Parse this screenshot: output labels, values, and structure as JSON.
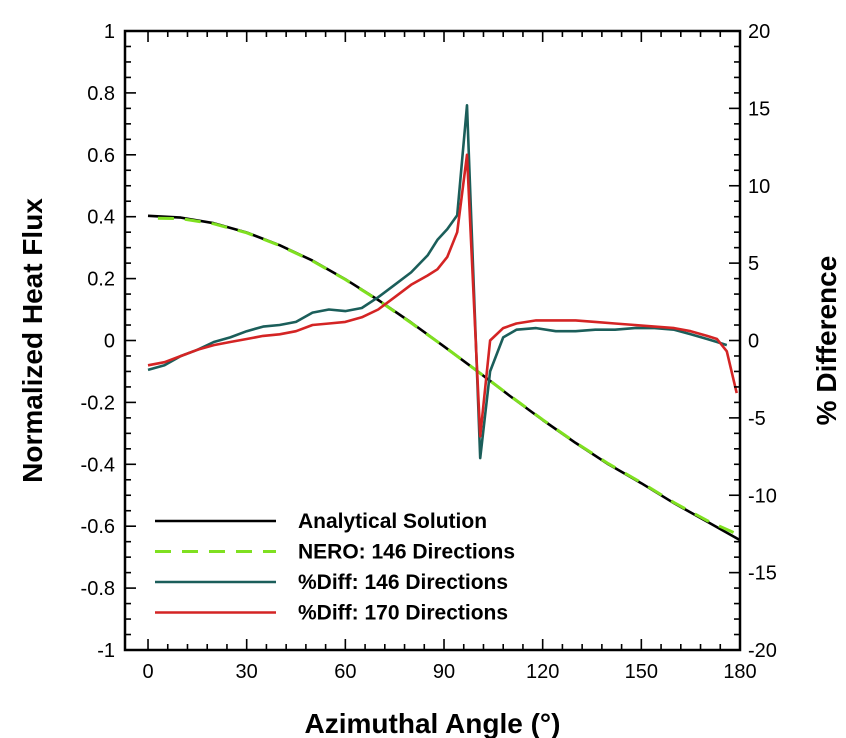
{
  "chart_data": {
    "type": "line",
    "xlabel": "Azimuthal Angle (°)",
    "ylabel": "Normalized Heat Flux",
    "y2label": "% Difference",
    "xlim": [
      -7,
      180
    ],
    "ylim": [
      -1,
      1
    ],
    "y2lim": [
      -20,
      20
    ],
    "x_ticks": [
      0,
      30,
      60,
      90,
      120,
      150,
      180
    ],
    "y_ticks": [
      -1,
      -0.8,
      -0.6,
      -0.4,
      -0.2,
      0,
      0.2,
      0.4,
      0.6,
      0.8,
      1
    ],
    "y2_ticks": [
      -20,
      -15,
      -10,
      -5,
      0,
      5,
      10,
      15,
      20
    ],
    "x_tick_labels": [
      "0",
      "30",
      "60",
      "90",
      "120",
      "150",
      "180"
    ],
    "y_tick_labels": [
      "-1",
      "-0.8",
      "-0.6",
      "-0.4",
      "-0.2",
      "0",
      "0.2",
      "0.4",
      "0.6",
      "0.8",
      "1"
    ],
    "y2_tick_labels": [
      "-20",
      "-15",
      "-10",
      "-5",
      "0",
      "5",
      "10",
      "15",
      "20"
    ],
    "grid": false,
    "legend_position": "bottom-left",
    "series": [
      {
        "name": "Analytical Solution",
        "axis": "left",
        "color": "#000000",
        "style": "solid",
        "x": [
          0,
          10,
          20,
          30,
          40,
          50,
          60,
          70,
          80,
          90,
          100,
          110,
          120,
          130,
          140,
          150,
          160,
          170,
          180
        ],
        "y": [
          0.403,
          0.397,
          0.379,
          0.349,
          0.308,
          0.258,
          0.198,
          0.131,
          0.058,
          -0.019,
          -0.098,
          -0.179,
          -0.257,
          -0.331,
          -0.4,
          -0.461,
          -0.526,
          -0.585,
          -0.645
        ]
      },
      {
        "name": "NERO: 146 Directions",
        "axis": "left",
        "color": "#7fe020",
        "style": "dashed",
        "x": [
          3,
          10,
          20,
          30,
          40,
          50,
          60,
          70,
          80,
          90,
          100,
          110,
          120,
          130,
          140,
          150,
          160,
          170,
          179
        ],
        "y": [
          0.395,
          0.394,
          0.377,
          0.348,
          0.307,
          0.257,
          0.197,
          0.13,
          0.057,
          -0.019,
          -0.098,
          -0.178,
          -0.256,
          -0.33,
          -0.398,
          -0.459,
          -0.524,
          -0.582,
          -0.625
        ]
      },
      {
        "name": "%Diff: 146 Directions",
        "axis": "right",
        "color": "#1b5e5a",
        "style": "solid",
        "x": [
          0,
          5,
          10,
          15,
          20,
          25,
          30,
          35,
          40,
          45,
          50,
          55,
          60,
          65,
          70,
          75,
          80,
          85,
          88,
          91,
          94,
          97,
          101,
          104,
          108,
          112,
          118,
          124,
          130,
          136,
          142,
          148,
          154,
          160,
          165,
          170,
          173,
          176
        ],
        "y": [
          -1.9,
          -1.6,
          -1.0,
          -0.6,
          -0.1,
          0.2,
          0.6,
          0.9,
          1.0,
          1.2,
          1.8,
          2.0,
          1.9,
          2.1,
          2.8,
          3.6,
          4.4,
          5.5,
          6.5,
          7.2,
          8.1,
          15.2,
          -7.6,
          -2.0,
          0.2,
          0.7,
          0.8,
          0.6,
          0.6,
          0.7,
          0.7,
          0.8,
          0.8,
          0.7,
          0.4,
          0.1,
          -0.1,
          -0.3
        ]
      },
      {
        "name": "%Diff: 170 Directions",
        "axis": "right",
        "color": "#d42424",
        "style": "solid",
        "x": [
          0,
          5,
          10,
          15,
          20,
          25,
          30,
          35,
          40,
          45,
          50,
          55,
          60,
          65,
          70,
          75,
          80,
          85,
          88,
          91,
          94,
          97,
          101,
          104,
          108,
          112,
          118,
          124,
          130,
          136,
          142,
          148,
          154,
          160,
          165,
          170,
          173,
          176,
          179
        ],
        "y": [
          -1.6,
          -1.4,
          -1.0,
          -0.6,
          -0.3,
          -0.1,
          0.1,
          0.3,
          0.4,
          0.6,
          1.0,
          1.1,
          1.2,
          1.5,
          2.0,
          2.8,
          3.6,
          4.2,
          4.6,
          5.4,
          7.0,
          12.0,
          -6.2,
          0.0,
          0.8,
          1.1,
          1.3,
          1.3,
          1.3,
          1.2,
          1.1,
          1.0,
          0.9,
          0.8,
          0.6,
          0.3,
          0.1,
          -0.7,
          -3.4
        ]
      }
    ]
  }
}
